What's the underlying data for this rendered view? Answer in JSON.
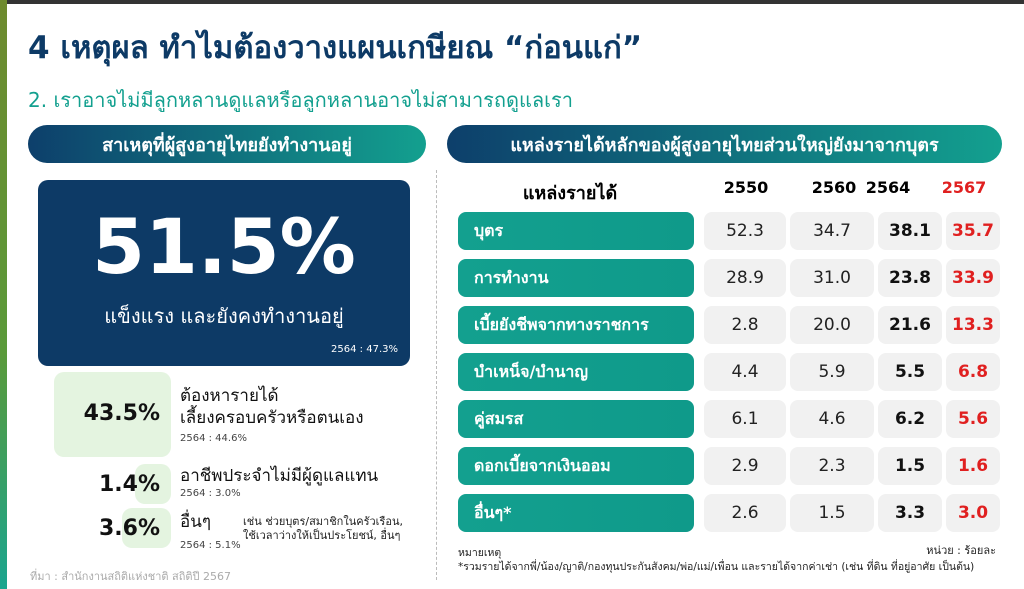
{
  "title": "4 เหตุผล ทำไมต้องวางแผนเกษียณ “ก่อนแก่”",
  "subtitle": "2. เราอาจไม่มีลูกหลานดูแลหรือลูกหลานอาจไม่สามารถดูแลเรา",
  "left": {
    "header": "สาเหตุที่ผู้สูงอายุไทยยังทำงานอยู่",
    "main": {
      "value": "51.5%",
      "caption": "แข็งแรง และยังคงทำงานอยู่",
      "prev": "2564 : 47.3%"
    },
    "items": [
      {
        "value": "43.5%",
        "label1": "ต้องหารายได้",
        "label2": "เลี้ยงครอบครัวหรือตนเอง",
        "prev": "2564 : 44.6%"
      },
      {
        "value": "1.4%",
        "label1": "อาชีพประจำไม่มีผู้ดูแลแทน",
        "prev": "2564 : 3.0%"
      },
      {
        "value": "3.6%",
        "label1": "อื่นๆ",
        "prev": "2564 : 5.1%",
        "note1": "เช่น ช่วยบุตร/สมาชิกในครัวเรือน,",
        "note2": "ใช้เวลาว่างให้เป็นประโยชน์, อื่นๆ"
      }
    ],
    "source": "ที่มา : สำนักงานสถิติแห่งชาติ สถิติปี 2567"
  },
  "right": {
    "header": "แหล่งรายได้หลักของผู้สูงอายุไทยส่วนใหญ่ยังมาจากบุตร",
    "columns": [
      "แหล่งรายได้",
      "2550",
      "2560",
      "2564",
      "2567"
    ],
    "highlight_color": "#e02020",
    "rows": [
      {
        "label": "บุตร",
        "values": [
          "52.3",
          "34.7",
          "38.1",
          "35.7"
        ]
      },
      {
        "label": "การทำงาน",
        "values": [
          "28.9",
          "31.0",
          "23.8",
          "33.9"
        ]
      },
      {
        "label": "เบี้ยยังชีพจากทางราชการ",
        "values": [
          "2.8",
          "20.0",
          "21.6",
          "13.3"
        ]
      },
      {
        "label": "บำเหน็จ/บำนาญ",
        "values": [
          "4.4",
          "5.9",
          "5.5",
          "6.8"
        ]
      },
      {
        "label": "คู่สมรส",
        "values": [
          "6.1",
          "4.6",
          "6.2",
          "5.6"
        ]
      },
      {
        "label": "ดอกเบี้ยจากเงินออม",
        "values": [
          "2.9",
          "2.3",
          "1.5",
          "1.6"
        ]
      },
      {
        "label": "อื่นๆ*",
        "values": [
          "2.6",
          "1.5",
          "3.3",
          "3.0"
        ]
      }
    ],
    "unit": "หน่วย : ร้อยละ",
    "note_title": "หมายเหตุ",
    "note": "*รวมรายได้จากพี่/น้อง/ญาติ/กองทุนประกันสังคม/พ่อ/แม่/เพื่อน และรายได้จากค่าเช่า (เช่น ที่ดิน ที่อยู่อาศัย เป็นต้น)"
  }
}
